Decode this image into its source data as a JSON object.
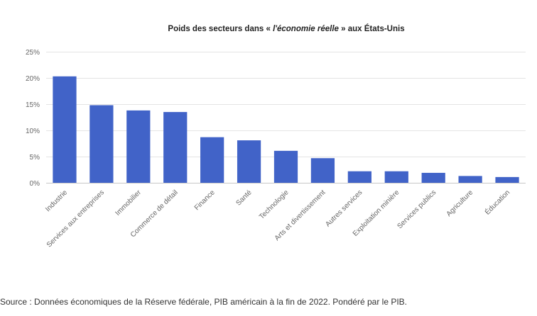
{
  "source": "Source : Données économiques de la Réserve fédérale, PIB américain à la fin de 2022. Pondéré par le PIB.",
  "colors": {
    "bar": "#4163c8"
  },
  "chart_data": {
    "type": "bar",
    "title": {
      "before": "Poids des secteurs dans « ",
      "italic": "l'économie réelle",
      "after": " » aux États-Unis"
    },
    "categories": [
      "Industrie",
      "Services aux entreprises",
      "Immobilier",
      "Commerce de détail",
      "Finance",
      "Santé",
      "Technologie",
      "Arts et divertissement",
      "Autres services",
      "Exploitation minière",
      "Services publics",
      "Agriculture",
      "Éducation"
    ],
    "values": [
      20.3,
      14.8,
      13.8,
      13.5,
      8.7,
      8.1,
      6.1,
      4.7,
      2.2,
      2.2,
      1.9,
      1.3,
      1.1
    ],
    "ylim": [
      0,
      25
    ],
    "yticks": [
      0,
      5,
      10,
      15,
      20,
      25
    ],
    "ytick_labels": [
      "0%",
      "5%",
      "10%",
      "15%",
      "20%",
      "25%"
    ],
    "grid": true
  }
}
